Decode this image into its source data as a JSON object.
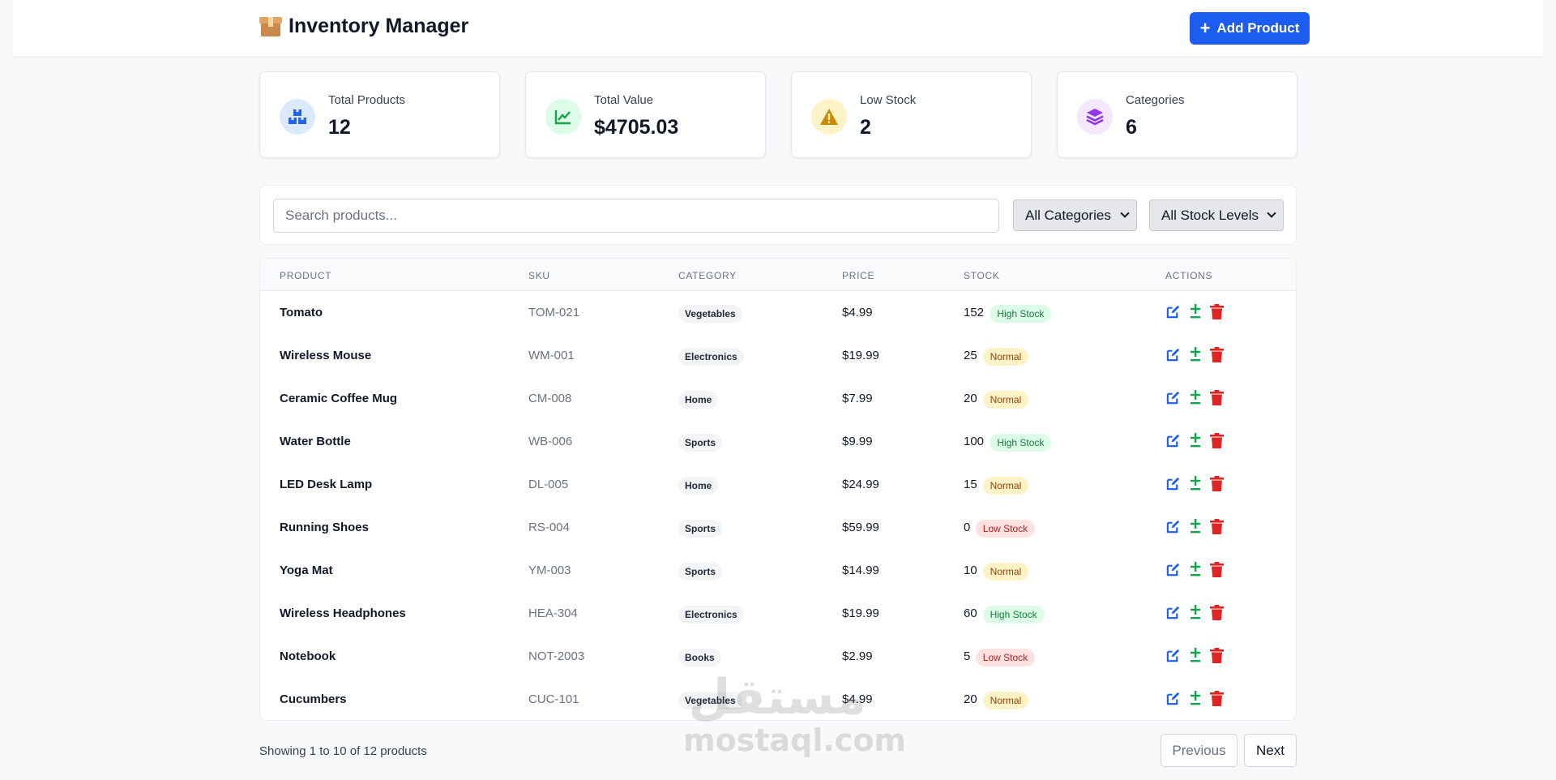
{
  "header": {
    "title": "Inventory Manager",
    "add_button_label": "Add Product"
  },
  "stats": [
    {
      "label": "Total Products",
      "value": "12",
      "icon": "boxes-icon",
      "color": "#2563eb",
      "bg": "#dbeafe"
    },
    {
      "label": "Total Value",
      "value": "$4705.03",
      "icon": "chart-line-icon",
      "color": "#16a34a",
      "bg": "#dcfce7"
    },
    {
      "label": "Low Stock",
      "value": "2",
      "icon": "warning-icon",
      "color": "#ca8a04",
      "bg": "#fef3c7"
    },
    {
      "label": "Categories",
      "value": "6",
      "icon": "layers-icon",
      "color": "#9333ea",
      "bg": "#f3e8ff"
    }
  ],
  "filters": {
    "search_placeholder": "Search products...",
    "category_select": "All Categories",
    "stock_select": "All Stock Levels"
  },
  "table": {
    "headers": {
      "product": "Product",
      "sku": "SKU",
      "category": "Category",
      "price": "Price",
      "stock": "Stock",
      "actions": "Actions"
    },
    "rows": [
      {
        "name": "Tomato",
        "sku": "TOM-021",
        "category": "Vegetables",
        "price": "$4.99",
        "stock": "152",
        "level": "High Stock"
      },
      {
        "name": "Wireless Mouse",
        "sku": "WM-001",
        "category": "Electronics",
        "price": "$19.99",
        "stock": "25",
        "level": "Normal"
      },
      {
        "name": "Ceramic Coffee Mug",
        "sku": "CM-008",
        "category": "Home",
        "price": "$7.99",
        "stock": "20",
        "level": "Normal"
      },
      {
        "name": "Water Bottle",
        "sku": "WB-006",
        "category": "Sports",
        "price": "$9.99",
        "stock": "100",
        "level": "High Stock"
      },
      {
        "name": "LED Desk Lamp",
        "sku": "DL-005",
        "category": "Home",
        "price": "$24.99",
        "stock": "15",
        "level": "Normal"
      },
      {
        "name": "Running Shoes",
        "sku": "RS-004",
        "category": "Sports",
        "price": "$59.99",
        "stock": "0",
        "level": "Low Stock"
      },
      {
        "name": "Yoga Mat",
        "sku": "YM-003",
        "category": "Sports",
        "price": "$14.99",
        "stock": "10",
        "level": "Normal"
      },
      {
        "name": "Wireless Headphones",
        "sku": "HEA-304",
        "category": "Electronics",
        "price": "$19.99",
        "stock": "60",
        "level": "High Stock"
      },
      {
        "name": "Notebook",
        "sku": "NOT-2003",
        "category": "Books",
        "price": "$2.99",
        "stock": "5",
        "level": "Low Stock"
      },
      {
        "name": "Cucumbers",
        "sku": "CUC-101",
        "category": "Vegetables",
        "price": "$4.99",
        "stock": "20",
        "level": "Normal"
      }
    ]
  },
  "pagination": {
    "summary": "Showing 1 to 10 of 12 products",
    "previous": "Previous",
    "next": "Next"
  },
  "watermark": {
    "arabic": "مستقل",
    "latin": "mostaql.com"
  }
}
